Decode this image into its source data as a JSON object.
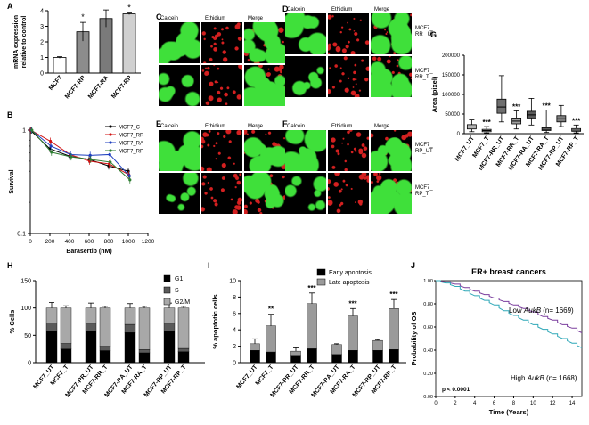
{
  "panel_labels": {
    "A": "A",
    "B": "B",
    "C": "C",
    "D": "D",
    "E": "E",
    "F": "F",
    "G": "G",
    "H": "H",
    "I": "I",
    "J": "J"
  },
  "micro": {
    "stain_labels": [
      "Calcein",
      "Ethidium",
      "Merge"
    ],
    "C_rows": [
      "MCF7_\n_UT",
      "MCF7 _T"
    ],
    "D_rows": [
      "MCF7_\nRR _UT",
      "MCF7_\nRR_T"
    ],
    "E_rows": [
      "MCF7_\nRA _UT",
      "MCF7_\nRA_T"
    ],
    "F_rows": [
      "MCF7_\nRP_UT",
      "MCF7_\nRP_T"
    ],
    "colors": {
      "calcein": "#3fe03a",
      "ethidium": "#d42020",
      "bg": "#000000"
    }
  },
  "chart_data": [
    {
      "id": "A",
      "type": "bar",
      "ylabel": "mRNA expression\nrelative to control",
      "ylim": [
        0,
        4
      ],
      "yticks": [
        0,
        1,
        2,
        3,
        4
      ],
      "categories": [
        "MCF7",
        "MCF7-RR",
        "MCF7-RA",
        "MCF7-RP"
      ],
      "values": [
        1.0,
        2.65,
        3.5,
        3.8
      ],
      "errors": [
        0.05,
        0.6,
        0.55,
        0.05
      ],
      "sig": [
        "",
        "*",
        "*",
        "*"
      ],
      "colors": [
        "#ffffff",
        "#8c8c8c",
        "#7a7a7a",
        "#d0d0d0"
      ]
    },
    {
      "id": "B",
      "type": "line",
      "xlabel": "Barasertib (nM)",
      "ylabel": "Survival",
      "xlim": [
        0,
        1200
      ],
      "xticks": [
        0,
        200,
        400,
        600,
        800,
        1000,
        1200
      ],
      "ylim": [
        0.1,
        1
      ],
      "yscale": "log",
      "yticks": [
        0.1,
        1
      ],
      "x": [
        0,
        200,
        400,
        600,
        800,
        1000
      ],
      "legend_position": "top-right",
      "series": [
        {
          "name": "MCF7_C",
          "color": "#000000",
          "values": [
            1.0,
            0.66,
            0.56,
            0.52,
            0.45,
            0.4
          ]
        },
        {
          "name": "MCF7_RR",
          "color": "#d01010",
          "values": [
            1.0,
            0.78,
            0.58,
            0.5,
            0.47,
            0.37
          ]
        },
        {
          "name": "MCF7_RA",
          "color": "#1f3fbf",
          "values": [
            1.0,
            0.7,
            0.58,
            0.57,
            0.58,
            0.36
          ]
        },
        {
          "name": "MCF7_RP",
          "color": "#2e7d32",
          "values": [
            1.0,
            0.61,
            0.55,
            0.52,
            0.49,
            0.33
          ]
        }
      ]
    },
    {
      "id": "G",
      "type": "box",
      "ylabel": "Area (pixel)",
      "ylim": [
        0,
        200000
      ],
      "yticks": [
        0,
        50000,
        100000,
        150000,
        200000
      ],
      "categories": [
        "MCF7_UT",
        "MCF7_T",
        "MCF7-RR_UT",
        "MCF7-RR_T",
        "MCF7-RA_UT",
        "MCF7-RA_T",
        "MCF7-RP_UT",
        "MCF7-RP_T"
      ],
      "boxes": [
        {
          "min": 5000,
          "q1": 12000,
          "median": 17000,
          "q3": 23000,
          "max": 35000,
          "sig": ""
        },
        {
          "min": 2000,
          "q1": 5000,
          "median": 8000,
          "q3": 11000,
          "max": 18000,
          "sig": "***"
        },
        {
          "min": 30000,
          "q1": 52000,
          "median": 68000,
          "q3": 88000,
          "max": 148000,
          "sig": ""
        },
        {
          "min": 12000,
          "q1": 25000,
          "median": 32000,
          "q3": 40000,
          "max": 58000,
          "sig": "***"
        },
        {
          "min": 22000,
          "q1": 40000,
          "median": 48000,
          "q3": 57000,
          "max": 90000,
          "sig": ""
        },
        {
          "min": 3000,
          "q1": 8000,
          "median": 11000,
          "q3": 15000,
          "max": 60000,
          "sig": "***"
        },
        {
          "min": 18000,
          "q1": 30000,
          "median": 38000,
          "q3": 46000,
          "max": 72000,
          "sig": ""
        },
        {
          "min": 2000,
          "q1": 6000,
          "median": 9000,
          "q3": 13000,
          "max": 22000,
          "sig": "***"
        }
      ],
      "colors": [
        "#b5b5b5",
        "#d6d6d6",
        "#6e6e6e",
        "#a0a0a0",
        "#595959",
        "#8c8c8c",
        "#7d7d7d",
        "#bdbdbd"
      ]
    },
    {
      "id": "H",
      "type": "bar",
      "stacked": true,
      "ylabel": "% Cells",
      "ylim": [
        0,
        150
      ],
      "yticks": [
        0,
        50,
        100,
        150
      ],
      "categories": [
        "MCF7_UT",
        "MCF7_T",
        "MCF7-RR_UT",
        "MCF7-RR_T",
        "MCF7-RA_UT",
        "MCF7-RA_T",
        "MCF7-RP_UT",
        "MCF7-RP_T"
      ],
      "legend_position": "top-right",
      "series": [
        {
          "name": "G1",
          "color": "#000000",
          "values": [
            58,
            25,
            58,
            22,
            55,
            18,
            58,
            20
          ]
        },
        {
          "name": "S",
          "color": "#5a5a5a",
          "values": [
            15,
            10,
            14,
            8,
            15,
            6,
            14,
            6
          ]
        },
        {
          "name": "G2/M",
          "color": "#a8a8a8",
          "values": [
            27,
            65,
            28,
            70,
            30,
            76,
            28,
            74
          ]
        }
      ],
      "errors": [
        10,
        4,
        9,
        3,
        8,
        3,
        9,
        3
      ]
    },
    {
      "id": "I",
      "type": "bar",
      "stacked": true,
      "ylabel": "% apoptotic cells",
      "ylim": [
        0,
        10
      ],
      "yticks": [
        0,
        2,
        4,
        6,
        8,
        10
      ],
      "categories": [
        "MCF7_UT",
        "MCF7_T",
        "MCF7-RR_UT",
        "MCF7-RR_T",
        "MCF7-RA_UT",
        "MCF7-RA_T",
        "MCF7-RP_UT",
        "MCF7-RP_T"
      ],
      "legend_position": "top-right",
      "series": [
        {
          "name": "Early apoptosis",
          "color": "#000000",
          "values": [
            1.5,
            1.3,
            0.9,
            1.7,
            1.0,
            1.5,
            1.5,
            1.6
          ]
        },
        {
          "name": "Late apoptosis",
          "color": "#9a9a9a",
          "values": [
            0.8,
            3.2,
            0.5,
            5.5,
            1.2,
            4.2,
            1.2,
            5.0
          ]
        }
      ],
      "errors": [
        0.6,
        1.4,
        0.4,
        1.3,
        0.1,
        0.9,
        0.1,
        1.1
      ],
      "sig": [
        "",
        "**",
        "",
        "***",
        "",
        "***",
        "",
        "***"
      ]
    },
    {
      "id": "J",
      "type": "line",
      "title": "ER+ breast cancers",
      "xlabel": "Time (Years)",
      "ylabel": "Probability of OS",
      "xlim": [
        0,
        15
      ],
      "xticks": [
        0,
        2,
        4,
        6,
        8,
        10,
        12,
        14
      ],
      "ylim": [
        0,
        1.0
      ],
      "yticks": [
        0.0,
        0.2,
        0.4,
        0.6,
        0.8,
        1.0
      ],
      "annotation": "p < 0.0001",
      "series": [
        {
          "name": "Low AukB (n= 1669)",
          "label_prefix": "Low ",
          "label_gene": "AukB",
          "label_suffix": " (n= 1669)",
          "color": "#7b3f9e",
          "x": [
            0,
            1,
            2,
            3,
            4,
            5,
            6,
            7,
            8,
            9,
            10,
            11,
            12,
            13,
            14,
            15
          ],
          "values": [
            1.0,
            0.99,
            0.97,
            0.94,
            0.91,
            0.88,
            0.85,
            0.82,
            0.79,
            0.76,
            0.73,
            0.69,
            0.66,
            0.62,
            0.59,
            0.55
          ]
        },
        {
          "name": "High AukB (n= 1668)",
          "label_prefix": "High ",
          "label_gene": "AukB",
          "label_suffix": " (n= 1668)",
          "color": "#2fa8b8",
          "x": [
            0,
            1,
            2,
            3,
            4,
            5,
            6,
            7,
            8,
            9,
            10,
            11,
            12,
            13,
            14,
            15
          ],
          "values": [
            1.0,
            0.98,
            0.95,
            0.91,
            0.87,
            0.83,
            0.79,
            0.74,
            0.7,
            0.66,
            0.62,
            0.58,
            0.54,
            0.5,
            0.46,
            0.42
          ]
        }
      ]
    }
  ]
}
